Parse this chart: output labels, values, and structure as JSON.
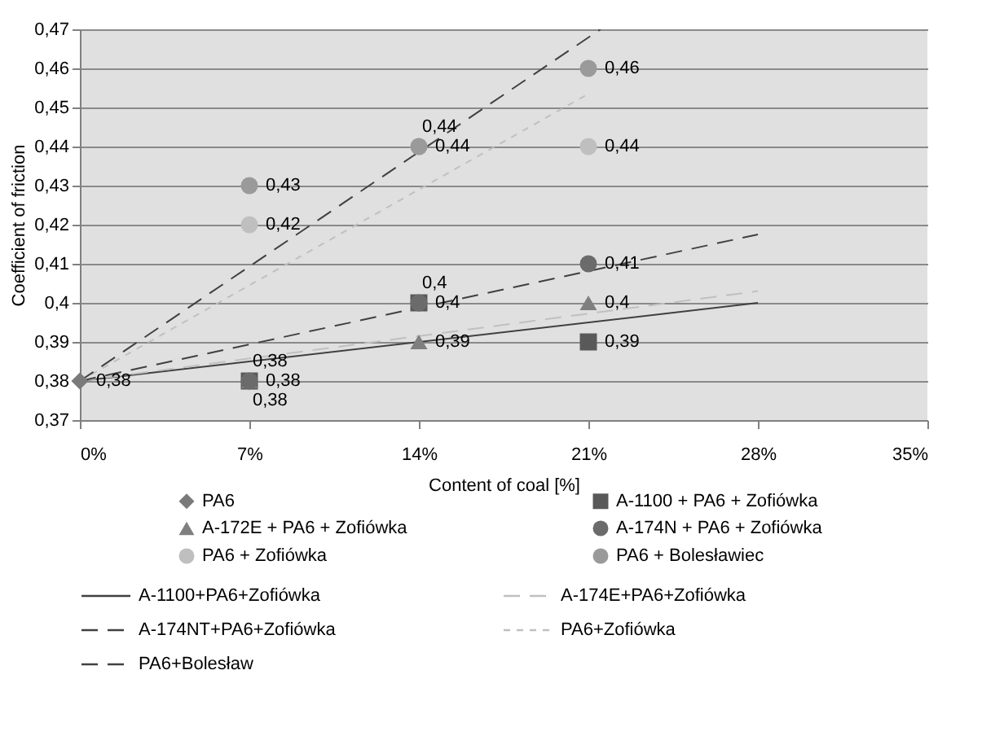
{
  "chart_data": {
    "type": "scatter",
    "xlabel": "Content of coal [%]",
    "ylabel": "Coefficient of friction",
    "xlim": [
      0,
      35
    ],
    "xticks": [
      {
        "value": 0,
        "label": "0%"
      },
      {
        "value": 7,
        "label": "7%"
      },
      {
        "value": 14,
        "label": "14%"
      },
      {
        "value": 21,
        "label": "21%"
      },
      {
        "value": 28,
        "label": "28%"
      },
      {
        "value": 35,
        "label": "35%"
      }
    ],
    "ylim": [
      0.37,
      0.47
    ],
    "yticks": [
      {
        "value": 0.37,
        "label": "0,37"
      },
      {
        "value": 0.38,
        "label": "0,38"
      },
      {
        "value": 0.39,
        "label": "0,39"
      },
      {
        "value": 0.4,
        "label": "0,4"
      },
      {
        "value": 0.41,
        "label": "0,41"
      },
      {
        "value": 0.42,
        "label": "0,42"
      },
      {
        "value": 0.43,
        "label": "0,43"
      },
      {
        "value": 0.44,
        "label": "0,44"
      },
      {
        "value": 0.45,
        "label": "0,45"
      },
      {
        "value": 0.46,
        "label": "0,46"
      },
      {
        "value": 0.47,
        "label": "0,47"
      }
    ],
    "grid": "y",
    "legend": "bottom",
    "series": [
      {
        "name": "PA6",
        "marker": "diamond",
        "color": "#7a7a7a",
        "x": [
          0
        ],
        "values": [
          0.38
        ],
        "value_labels": [
          "0,38"
        ]
      },
      {
        "name": "A-1100 + PA6 + Zofiówka",
        "marker": "square",
        "color": "#595959",
        "x": [
          7,
          14,
          21
        ],
        "values": [
          0.38,
          0.4,
          0.39
        ],
        "value_labels": [
          "0,38",
          "0,4",
          "0,39"
        ]
      },
      {
        "name": "A-172E + PA6 + Zofiówka",
        "marker": "triangle",
        "color": "#7f7f7f",
        "x": [
          7,
          14,
          21
        ],
        "values": [
          0.38,
          0.39,
          0.4
        ],
        "value_labels": [
          "0,38",
          "0,39",
          "0,4"
        ]
      },
      {
        "name": "A-174N + PA6 + Zofiówka",
        "marker": "circle",
        "color": "#6b6b6b",
        "x": [
          7,
          14,
          21
        ],
        "values": [
          0.38,
          0.4,
          0.41
        ],
        "value_labels": [
          "0,38",
          "0,4",
          "0,41"
        ]
      },
      {
        "name": "PA6 + Zofiówka",
        "marker": "circle",
        "color": "#bfbfbf",
        "x": [
          7,
          14,
          21
        ],
        "values": [
          0.42,
          0.44,
          0.44
        ],
        "value_labels": [
          "0,42",
          "0,44",
          "0,44"
        ]
      },
      {
        "name": "PA6 + Bolesławiec",
        "marker": "circle",
        "color": "#9a9a9a",
        "x": [
          7,
          14,
          21
        ],
        "values": [
          0.43,
          0.44,
          0.46
        ],
        "value_labels": [
          "0,43",
          "0,44",
          "0,46"
        ]
      },
      {
        "name": "A-1100+PA6+Zofiówka",
        "type": "line",
        "line_style": "solid",
        "color": "#404040",
        "x": [
          0,
          28
        ],
        "values": [
          0.38,
          0.4
        ]
      },
      {
        "name": "A-174E+PA6+Zofiówka",
        "type": "line",
        "line_style": "dashed",
        "color": "#c0c0c0",
        "x": [
          0,
          28
        ],
        "values": [
          0.38,
          0.403
        ]
      },
      {
        "name": "A-174NT+PA6+Zofiówka",
        "type": "line",
        "line_style": "dashed",
        "color": "#404040",
        "x": [
          0,
          28
        ],
        "values": [
          0.38,
          0.4175
        ]
      },
      {
        "name": "PA6+Zofiówka",
        "type": "line",
        "line_style": "dotted",
        "color": "#c0c0c0",
        "x": [
          0,
          21
        ],
        "values": [
          0.38,
          0.4535
        ]
      },
      {
        "name": "PA6+Bolesław",
        "type": "line",
        "line_style": "dashed",
        "color": "#404040",
        "x": [
          0,
          21.5
        ],
        "values": [
          0.38,
          0.47
        ]
      }
    ]
  }
}
